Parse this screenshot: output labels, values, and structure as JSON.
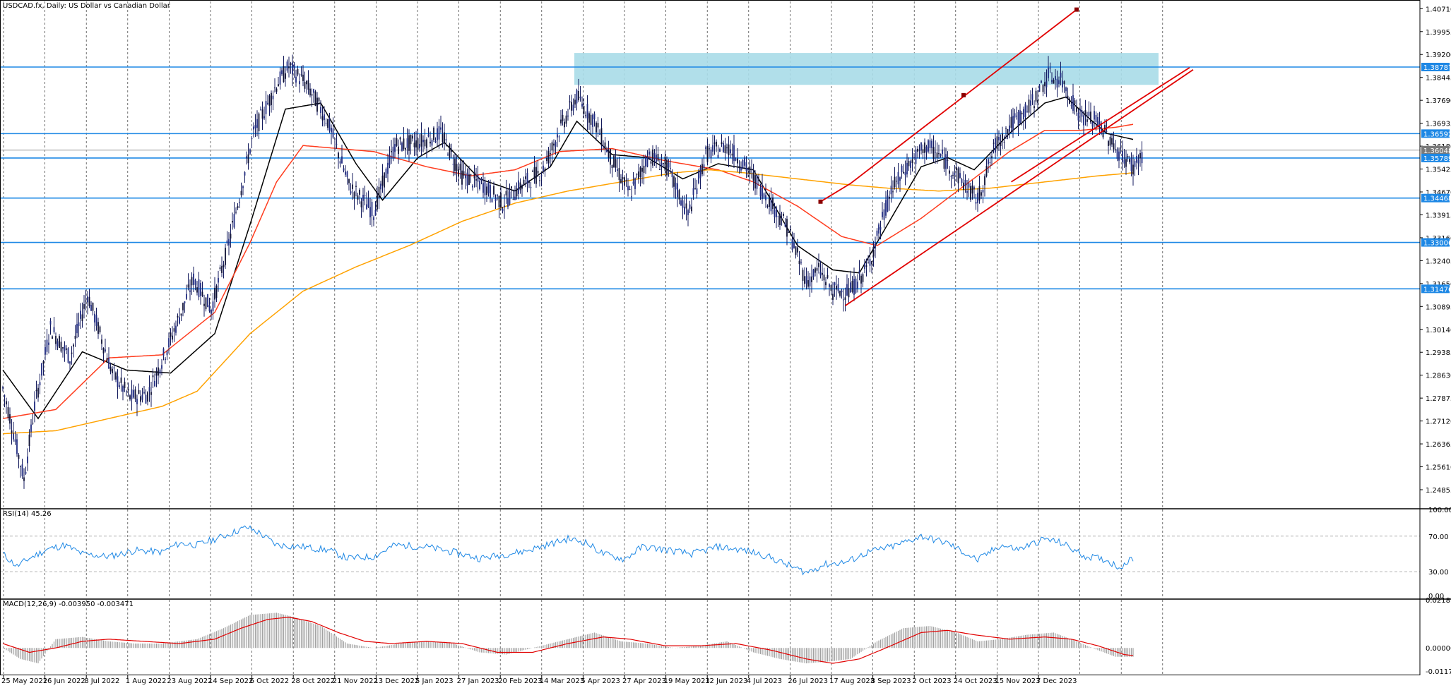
{
  "window": {
    "title": "USDCAD.fx, Daily:  US Dollar vs Canadian Dollar"
  },
  "chart_data": {
    "type": "line",
    "symbol": "USDCAD.fx",
    "timeframe": "Daily",
    "title": "USDCAD.fx, Daily:  US Dollar vs Canadian Dollar",
    "x_tick_labels": [
      "25 May 2022",
      "16 Jun 2022",
      "8 Jul 2022",
      "1 Aug 2022",
      "23 Aug 2022",
      "14 Sep 2022",
      "6 Oct 2022",
      "28 Oct 2022",
      "21 Nov 2022",
      "13 Dec 2022",
      "5 Jan 2023",
      "27 Jan 2023",
      "20 Feb 2023",
      "14 Mar 2023",
      "5 Apr 2023",
      "27 Apr 2023",
      "19 May 2023",
      "12 Jun 2023",
      "4 Jul 2023",
      "26 Jul 2023",
      "17 Aug 2023",
      "8 Sep 2023",
      "2 Oct 2023",
      "24 Oct 2023",
      "15 Nov 2023",
      "7 Dec 2023"
    ],
    "price_ticks": [
      "1.40710",
      "1.39955",
      "1.39200",
      "1.38445",
      "1.37690",
      "1.36935",
      "1.36180",
      "1.35425",
      "1.34670",
      "1.33915",
      "1.33160",
      "1.32405",
      "1.31650",
      "1.30895",
      "1.30140",
      "1.29385",
      "1.28630",
      "1.27875",
      "1.27120",
      "1.26365",
      "1.25610",
      "1.24855"
    ],
    "ylim": [
      1.2425,
      1.4095
    ],
    "grid": true,
    "price_labels": [
      {
        "value": "1.38787",
        "color": "#1e88e5"
      },
      {
        "value": "1.36592",
        "color": "#1e88e5"
      },
      {
        "value": "1.36048",
        "color": "#7a7a7a"
      },
      {
        "value": "1.35789",
        "color": "#1e88e5"
      },
      {
        "value": "1.34468",
        "color": "#1e88e5"
      },
      {
        "value": "1.33006",
        "color": "#1e88e5"
      },
      {
        "value": "1.31476",
        "color": "#1e88e5"
      }
    ],
    "horizontal_levels": [
      1.38787,
      1.36592,
      1.35789,
      1.34468,
      1.33006,
      1.31476
    ],
    "current_price": 1.36048,
    "resistance_zone": {
      "from_date": "27 Feb 2023",
      "to_date": "25 Dec 2023",
      "low": 1.382,
      "high": 1.3925
    },
    "candles": {
      "count": 400,
      "keypoints": [
        [
          0,
          1.282
        ],
        [
          5,
          1.27
        ],
        [
          12,
          1.252
        ],
        [
          18,
          1.276
        ],
        [
          27,
          1.302
        ],
        [
          38,
          1.292
        ],
        [
          48,
          1.313
        ],
        [
          62,
          1.287
        ],
        [
          72,
          1.279
        ],
        [
          82,
          1.28
        ],
        [
          95,
          1.298
        ],
        [
          108,
          1.318
        ],
        [
          118,
          1.308
        ],
        [
          128,
          1.33
        ],
        [
          142,
          1.366
        ],
        [
          155,
          1.382
        ],
        [
          162,
          1.388
        ],
        [
          172,
          1.382
        ],
        [
          184,
          1.37
        ],
        [
          196,
          1.349
        ],
        [
          210,
          1.34
        ],
        [
          222,
          1.362
        ],
        [
          235,
          1.363
        ],
        [
          248,
          1.366
        ],
        [
          260,
          1.352
        ],
        [
          272,
          1.349
        ],
        [
          283,
          1.343
        ],
        [
          294,
          1.349
        ],
        [
          306,
          1.354
        ],
        [
          315,
          1.367
        ],
        [
          325,
          1.378
        ],
        [
          335,
          1.37
        ],
        [
          345,
          1.357
        ],
        [
          355,
          1.346
        ],
        [
          366,
          1.359
        ],
        [
          376,
          1.355
        ],
        [
          388,
          1.339
        ],
        [
          398,
          1.359
        ],
        [
          410,
          1.362
        ],
        [
          422,
          1.354
        ],
        [
          434,
          1.344
        ],
        [
          445,
          1.334
        ],
        [
          455,
          1.317
        ],
        [
          462,
          1.321
        ],
        [
          470,
          1.314
        ],
        [
          480,
          1.314
        ],
        [
          490,
          1.322
        ],
        [
          503,
          1.347
        ],
        [
          512,
          1.355
        ],
        [
          523,
          1.362
        ],
        [
          532,
          1.358
        ],
        [
          545,
          1.349
        ],
        [
          552,
          1.344
        ],
        [
          562,
          1.362
        ],
        [
          571,
          1.369
        ],
        [
          582,
          1.375
        ],
        [
          592,
          1.385
        ],
        [
          600,
          1.383
        ],
        [
          610,
          1.372
        ],
        [
          620,
          1.37
        ],
        [
          630,
          1.361
        ],
        [
          640,
          1.355
        ],
        [
          645,
          1.359
        ]
      ]
    },
    "series": [
      {
        "name": "",
        "color": "#000000",
        "keypoints": [
          [
            0,
            1.288
          ],
          [
            20,
            1.272
          ],
          [
            45,
            1.294
          ],
          [
            70,
            1.288
          ],
          [
            95,
            1.287
          ],
          [
            120,
            1.3
          ],
          [
            140,
            1.336
          ],
          [
            160,
            1.374
          ],
          [
            180,
            1.376
          ],
          [
            200,
            1.356
          ],
          [
            215,
            1.344
          ],
          [
            235,
            1.358
          ],
          [
            250,
            1.363
          ],
          [
            270,
            1.351
          ],
          [
            290,
            1.347
          ],
          [
            310,
            1.355
          ],
          [
            325,
            1.37
          ],
          [
            345,
            1.359
          ],
          [
            365,
            1.358
          ],
          [
            385,
            1.351
          ],
          [
            405,
            1.356
          ],
          [
            425,
            1.354
          ],
          [
            450,
            1.329
          ],
          [
            470,
            1.321
          ],
          [
            485,
            1.32
          ],
          [
            500,
            1.335
          ],
          [
            520,
            1.355
          ],
          [
            535,
            1.358
          ],
          [
            550,
            1.354
          ],
          [
            570,
            1.366
          ],
          [
            590,
            1.376
          ],
          [
            602,
            1.378
          ],
          [
            615,
            1.371
          ],
          [
            625,
            1.366
          ],
          [
            640,
            1.364
          ]
        ]
      },
      {
        "name": "",
        "color": "#ff3d1f",
        "keypoints": [
          [
            0,
            1.272
          ],
          [
            30,
            1.275
          ],
          [
            60,
            1.292
          ],
          [
            90,
            1.293
          ],
          [
            120,
            1.307
          ],
          [
            140,
            1.33
          ],
          [
            155,
            1.35
          ],
          [
            170,
            1.362
          ],
          [
            190,
            1.361
          ],
          [
            210,
            1.36
          ],
          [
            240,
            1.355
          ],
          [
            265,
            1.352
          ],
          [
            290,
            1.354
          ],
          [
            315,
            1.36
          ],
          [
            345,
            1.361
          ],
          [
            375,
            1.357
          ],
          [
            405,
            1.354
          ],
          [
            425,
            1.35
          ],
          [
            450,
            1.342
          ],
          [
            475,
            1.332
          ],
          [
            495,
            1.329
          ],
          [
            520,
            1.338
          ],
          [
            545,
            1.349
          ],
          [
            570,
            1.36
          ],
          [
            590,
            1.367
          ],
          [
            610,
            1.367
          ],
          [
            630,
            1.368
          ],
          [
            640,
            1.369
          ]
        ]
      },
      {
        "name": "",
        "color": "#ffa200",
        "keypoints": [
          [
            0,
            1.267
          ],
          [
            30,
            1.268
          ],
          [
            60,
            1.272
          ],
          [
            90,
            1.276
          ],
          [
            110,
            1.281
          ],
          [
            140,
            1.3
          ],
          [
            170,
            1.314
          ],
          [
            200,
            1.322
          ],
          [
            230,
            1.329
          ],
          [
            260,
            1.337
          ],
          [
            290,
            1.343
          ],
          [
            320,
            1.347
          ],
          [
            350,
            1.35
          ],
          [
            380,
            1.353
          ],
          [
            400,
            1.354
          ],
          [
            420,
            1.353
          ],
          [
            450,
            1.351
          ],
          [
            480,
            1.349
          ],
          [
            500,
            1.348
          ],
          [
            530,
            1.347
          ],
          [
            560,
            1.348
          ],
          [
            590,
            1.35
          ],
          [
            620,
            1.352
          ],
          [
            640,
            1.353
          ]
        ]
      }
    ],
    "trendlines": [
      {
        "color": "#e10000",
        "points": [
          [
            463,
            1.3435
          ],
          [
            480,
            1.3495
          ],
          [
            608,
            1.4068
          ]
        ],
        "markers": [
          [
            463,
            1.3435
          ],
          [
            544,
            1.3786
          ],
          [
            608,
            1.4068
          ]
        ]
      },
      {
        "color": "#e10000",
        "points": [
          [
            477,
            1.3092
          ],
          [
            674,
            1.387
          ]
        ]
      },
      {
        "color": "#e10000",
        "points": [
          [
            571,
            1.35
          ],
          [
            672,
            1.3877
          ]
        ]
      }
    ],
    "rsi": {
      "label": "RSI(14) 45.26",
      "ticks": [
        "100.00",
        "70.00",
        "30.00",
        "0.00"
      ],
      "levels": [
        70,
        30
      ],
      "ylim": [
        0,
        100
      ],
      "keypoints": [
        [
          0,
          50
        ],
        [
          8,
          36
        ],
        [
          15,
          45
        ],
        [
          25,
          55
        ],
        [
          35,
          60
        ],
        [
          45,
          50
        ],
        [
          60,
          47
        ],
        [
          75,
          54
        ],
        [
          90,
          52
        ],
        [
          100,
          62
        ],
        [
          110,
          60
        ],
        [
          125,
          70
        ],
        [
          138,
          80
        ],
        [
          145,
          74
        ],
        [
          155,
          60
        ],
        [
          170,
          58
        ],
        [
          185,
          54
        ],
        [
          195,
          45
        ],
        [
          210,
          47
        ],
        [
          222,
          60
        ],
        [
          240,
          58
        ],
        [
          255,
          52
        ],
        [
          270,
          45
        ],
        [
          280,
          48
        ],
        [
          295,
          53
        ],
        [
          308,
          60
        ],
        [
          320,
          67
        ],
        [
          330,
          63
        ],
        [
          340,
          50
        ],
        [
          352,
          44
        ],
        [
          362,
          58
        ],
        [
          375,
          55
        ],
        [
          390,
          50
        ],
        [
          405,
          58
        ],
        [
          420,
          54
        ],
        [
          432,
          48
        ],
        [
          445,
          37
        ],
        [
          455,
          29
        ],
        [
          465,
          38
        ],
        [
          478,
          41
        ],
        [
          490,
          52
        ],
        [
          505,
          59
        ],
        [
          520,
          70
        ],
        [
          535,
          62
        ],
        [
          552,
          43
        ],
        [
          565,
          60
        ],
        [
          575,
          55
        ],
        [
          590,
          67
        ],
        [
          600,
          62
        ],
        [
          612,
          48
        ],
        [
          625,
          43
        ],
        [
          632,
          35
        ],
        [
          640,
          45
        ]
      ]
    },
    "macd": {
      "label": "MACD(12,26,9) -0.003950 -0.003471",
      "ticks": [
        "0.021879",
        "0.000000",
        "-0.011787"
      ],
      "ylim": [
        -0.0118,
        0.0219
      ],
      "signal_color": "#e10000",
      "histogram_color": "#a0a0a0",
      "hist_keypoints": [
        [
          0,
          0.0
        ],
        [
          10,
          -0.005
        ],
        [
          20,
          -0.007
        ],
        [
          30,
          0.004
        ],
        [
          45,
          0.005
        ],
        [
          60,
          0.003
        ],
        [
          75,
          0.002
        ],
        [
          90,
          0.002
        ],
        [
          110,
          0.004
        ],
        [
          125,
          0.009
        ],
        [
          140,
          0.015
        ],
        [
          155,
          0.016
        ],
        [
          165,
          0.014
        ],
        [
          180,
          0.01
        ],
        [
          195,
          0.002
        ],
        [
          210,
          0.0
        ],
        [
          225,
          0.002
        ],
        [
          240,
          0.003
        ],
        [
          255,
          0.002
        ],
        [
          270,
          -0.002
        ],
        [
          285,
          -0.003
        ],
        [
          300,
          0.0
        ],
        [
          320,
          0.004
        ],
        [
          335,
          0.007
        ],
        [
          350,
          0.003
        ],
        [
          365,
          0.002
        ],
        [
          380,
          0.0
        ],
        [
          395,
          0.001
        ],
        [
          410,
          0.003
        ],
        [
          425,
          -0.002
        ],
        [
          440,
          -0.005
        ],
        [
          455,
          -0.007
        ],
        [
          470,
          -0.006
        ],
        [
          480,
          -0.005
        ],
        [
          495,
          0.003
        ],
        [
          510,
          0.009
        ],
        [
          525,
          0.01
        ],
        [
          540,
          0.007
        ],
        [
          552,
          0.003
        ],
        [
          565,
          0.004
        ],
        [
          580,
          0.006
        ],
        [
          595,
          0.007
        ],
        [
          608,
          0.003
        ],
        [
          620,
          -0.001
        ],
        [
          630,
          -0.004
        ],
        [
          640,
          -0.004
        ]
      ],
      "signal_keypoints": [
        [
          0,
          0.002
        ],
        [
          15,
          -0.002
        ],
        [
          30,
          0.0
        ],
        [
          45,
          0.003
        ],
        [
          60,
          0.004
        ],
        [
          80,
          0.003
        ],
        [
          100,
          0.002
        ],
        [
          120,
          0.004
        ],
        [
          135,
          0.009
        ],
        [
          150,
          0.013
        ],
        [
          162,
          0.014
        ],
        [
          175,
          0.012
        ],
        [
          190,
          0.007
        ],
        [
          205,
          0.003
        ],
        [
          220,
          0.002
        ],
        [
          240,
          0.003
        ],
        [
          260,
          0.002
        ],
        [
          280,
          -0.002
        ],
        [
          300,
          -0.002
        ],
        [
          320,
          0.002
        ],
        [
          340,
          0.005
        ],
        [
          355,
          0.004
        ],
        [
          375,
          0.001
        ],
        [
          395,
          0.001
        ],
        [
          415,
          0.002
        ],
        [
          435,
          -0.001
        ],
        [
          455,
          -0.005
        ],
        [
          470,
          -0.007
        ],
        [
          485,
          -0.005
        ],
        [
          500,
          0.0
        ],
        [
          520,
          0.007
        ],
        [
          535,
          0.008
        ],
        [
          550,
          0.006
        ],
        [
          570,
          0.004
        ],
        [
          590,
          0.005
        ],
        [
          605,
          0.004
        ],
        [
          620,
          0.001
        ],
        [
          635,
          -0.003
        ],
        [
          640,
          -0.0035
        ]
      ]
    }
  }
}
